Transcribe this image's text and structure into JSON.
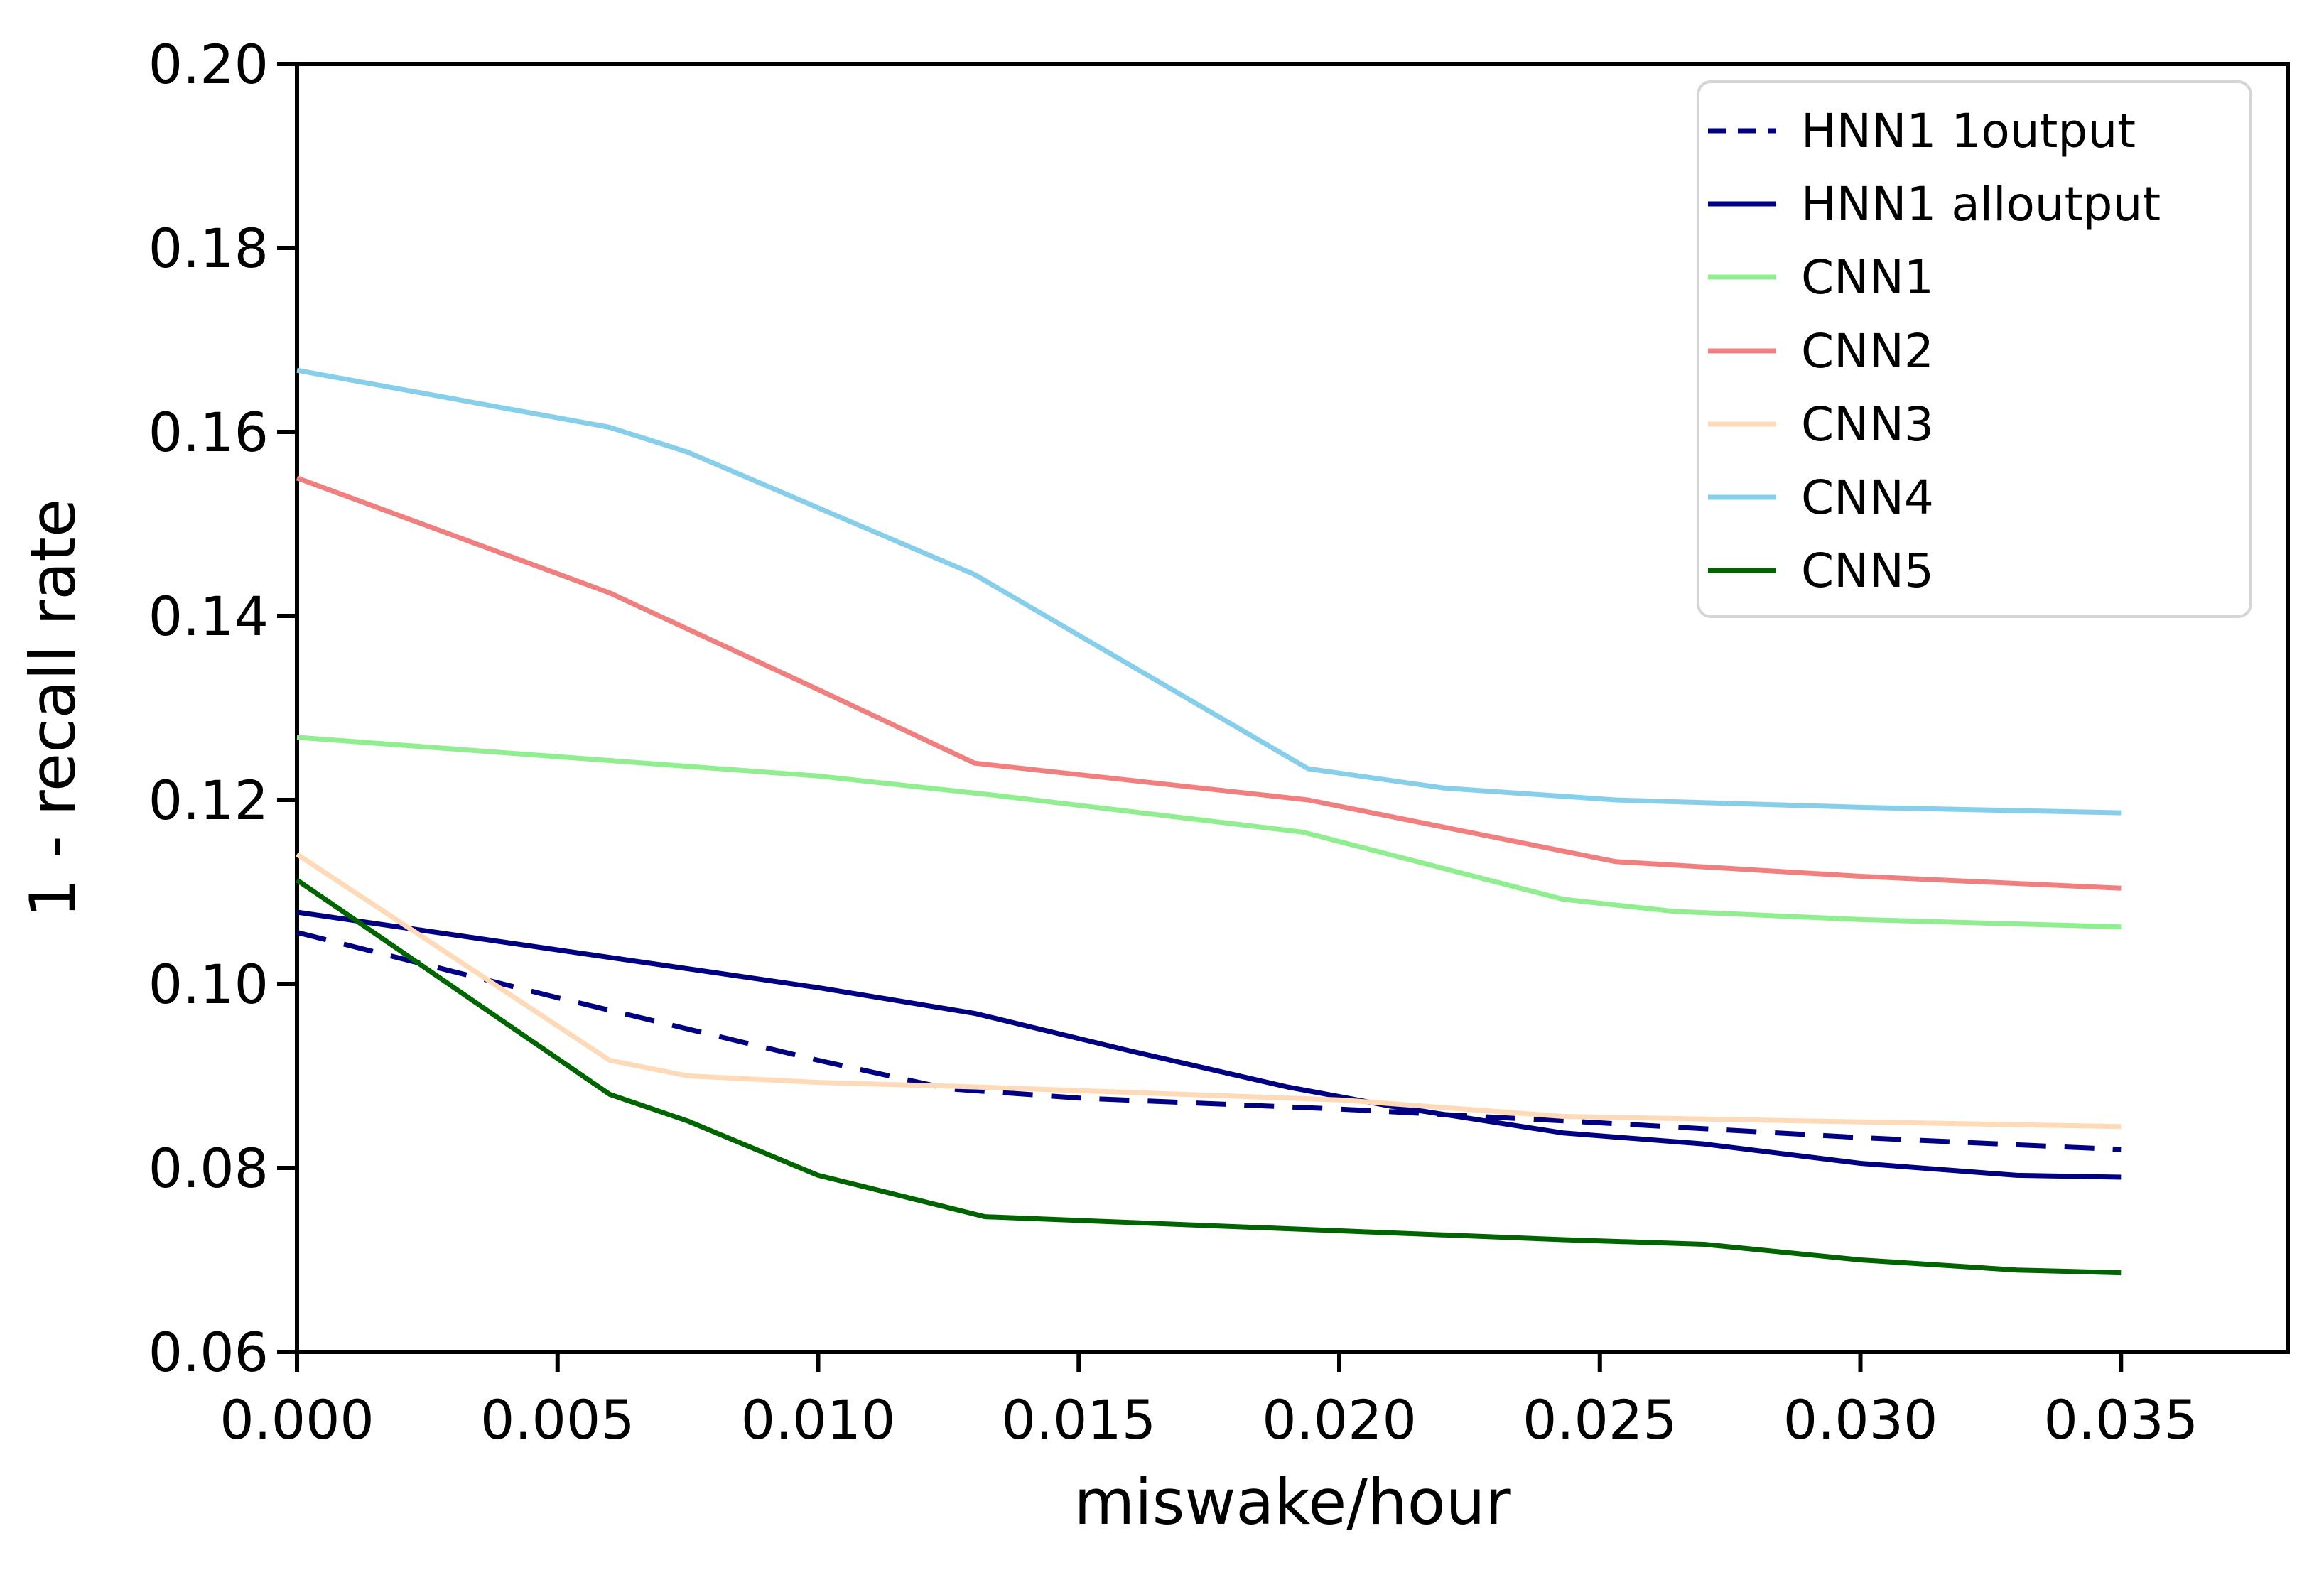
{
  "chart_data": {
    "type": "line",
    "title": "",
    "xlabel": "miswake/hour",
    "ylabel": "1 - recall rate",
    "xlim": [
      0,
      0.0382
    ],
    "ylim": [
      0.06,
      0.2
    ],
    "grid": false,
    "legend_position": "upper right",
    "x_ticks": [
      {
        "v": 0.0,
        "label": "0.000"
      },
      {
        "v": 0.005,
        "label": "0.005"
      },
      {
        "v": 0.01,
        "label": "0.010"
      },
      {
        "v": 0.015,
        "label": "0.015"
      },
      {
        "v": 0.02,
        "label": "0.020"
      },
      {
        "v": 0.025,
        "label": "0.025"
      },
      {
        "v": 0.03,
        "label": "0.030"
      },
      {
        "v": 0.035,
        "label": "0.035"
      }
    ],
    "y_ticks": [
      {
        "v": 0.06,
        "label": "0.06"
      },
      {
        "v": 0.08,
        "label": "0.08"
      },
      {
        "v": 0.1,
        "label": "0.10"
      },
      {
        "v": 0.12,
        "label": "0.12"
      },
      {
        "v": 0.14,
        "label": "0.14"
      },
      {
        "v": 0.16,
        "label": "0.16"
      },
      {
        "v": 0.18,
        "label": "0.18"
      },
      {
        "v": 0.2,
        "label": "0.20"
      }
    ],
    "series": [
      {
        "name": "HNN1 1output",
        "color": "#000080",
        "style": "dashed",
        "points": [
          [
            0,
            0.1056
          ],
          [
            0.005,
            0.0985
          ],
          [
            0.01,
            0.0917
          ],
          [
            0.0125,
            0.0886
          ],
          [
            0.015,
            0.0876
          ],
          [
            0.02,
            0.0864
          ],
          [
            0.025,
            0.0849
          ],
          [
            0.03,
            0.0833
          ],
          [
            0.035,
            0.082
          ]
        ]
      },
      {
        "name": "HNN1 alloutput",
        "color": "#000080",
        "style": "solid",
        "points": [
          [
            0,
            0.1078
          ],
          [
            0.005,
            0.1037
          ],
          [
            0.01,
            0.0996
          ],
          [
            0.013,
            0.0968
          ],
          [
            0.016,
            0.0927
          ],
          [
            0.019,
            0.0888
          ],
          [
            0.021,
            0.0867
          ],
          [
            0.0243,
            0.0838
          ],
          [
            0.027,
            0.0826
          ],
          [
            0.03,
            0.0805
          ],
          [
            0.033,
            0.0792
          ],
          [
            0.035,
            0.079
          ]
        ]
      },
      {
        "name": "CNN1",
        "color": "#90ee90",
        "style": "solid",
        "points": [
          [
            0,
            0.1268
          ],
          [
            0.005,
            0.1247
          ],
          [
            0.01,
            0.1226
          ],
          [
            0.0134,
            0.1205
          ],
          [
            0.0193,
            0.1165
          ],
          [
            0.0243,
            0.1092
          ],
          [
            0.0264,
            0.1079
          ],
          [
            0.03,
            0.107
          ],
          [
            0.035,
            0.1062
          ]
        ]
      },
      {
        "name": "CNN2",
        "color": "#f08080",
        "style": "solid",
        "points": [
          [
            0,
            0.155
          ],
          [
            0.006,
            0.1425
          ],
          [
            0.01,
            0.132
          ],
          [
            0.013,
            0.124
          ],
          [
            0.0194,
            0.12
          ],
          [
            0.0253,
            0.1133
          ],
          [
            0.03,
            0.1117
          ],
          [
            0.035,
            0.1104
          ]
        ]
      },
      {
        "name": "CNN3",
        "color": "#ffdab9",
        "style": "solid",
        "points": [
          [
            0,
            0.1141
          ],
          [
            0.006,
            0.0917
          ],
          [
            0.0075,
            0.09
          ],
          [
            0.01,
            0.0893
          ],
          [
            0.013,
            0.0888
          ],
          [
            0.016,
            0.0882
          ],
          [
            0.02,
            0.0874
          ],
          [
            0.0243,
            0.0856
          ],
          [
            0.03,
            0.085
          ],
          [
            0.035,
            0.0845
          ]
        ]
      },
      {
        "name": "CNN4",
        "color": "#87ceeb",
        "style": "solid",
        "points": [
          [
            0,
            0.1667
          ],
          [
            0.006,
            0.1605
          ],
          [
            0.0075,
            0.1578
          ],
          [
            0.013,
            0.1445
          ],
          [
            0.0194,
            0.1234
          ],
          [
            0.022,
            0.1213
          ],
          [
            0.0253,
            0.12
          ],
          [
            0.03,
            0.1192
          ],
          [
            0.035,
            0.1186
          ]
        ]
      },
      {
        "name": "CNN5",
        "color": "#006400",
        "style": "solid",
        "points": [
          [
            0,
            0.1113
          ],
          [
            0.006,
            0.088
          ],
          [
            0.0075,
            0.0851
          ],
          [
            0.01,
            0.0792
          ],
          [
            0.0132,
            0.0747
          ],
          [
            0.019,
            0.0734
          ],
          [
            0.0243,
            0.0722
          ],
          [
            0.027,
            0.0717
          ],
          [
            0.03,
            0.07
          ],
          [
            0.033,
            0.0689
          ],
          [
            0.035,
            0.0686
          ]
        ]
      }
    ]
  }
}
